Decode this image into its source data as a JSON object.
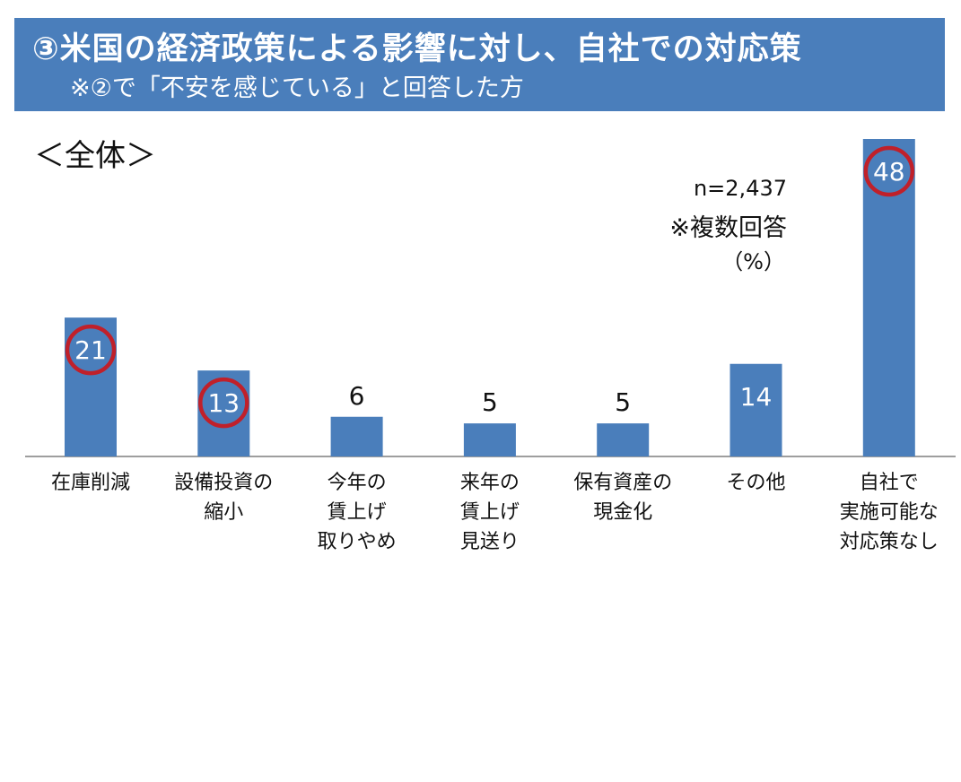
{
  "header": {
    "title": "③米国の経済政策による影響に対し、自社での対応策",
    "subtitle": "※②で「不安を感じている」と回答した方"
  },
  "section_label": "＜全体＞",
  "notes": {
    "sample_size": "n=2,437",
    "multiple_answer": "※複数回答",
    "unit": "（%）"
  },
  "colors": {
    "banner": "#4a7ebb",
    "bar": "#4a7ebb",
    "highlight_circle": "#c0202a",
    "axis": "#7f7f7f"
  },
  "chart_data": {
    "type": "bar",
    "categories": [
      [
        "在庫削減"
      ],
      [
        "設備投資の",
        "縮小"
      ],
      [
        "今年の",
        "賃上げ",
        "取りやめ"
      ],
      [
        "来年の",
        "賃上げ",
        "見送り"
      ],
      [
        "保有資産の",
        "現金化"
      ],
      [
        "その他"
      ],
      [
        "自社で",
        "実施可能な",
        "対応策なし"
      ]
    ],
    "values": [
      21,
      13,
      6,
      5,
      5,
      14,
      48
    ],
    "data_labels": [
      "21",
      "13",
      "6",
      "5",
      "5",
      "14",
      "48"
    ],
    "highlighted": [
      true,
      true,
      false,
      false,
      false,
      false,
      true
    ],
    "ylim": [
      0,
      48
    ],
    "title": "",
    "xlabel": "",
    "ylabel": ""
  }
}
